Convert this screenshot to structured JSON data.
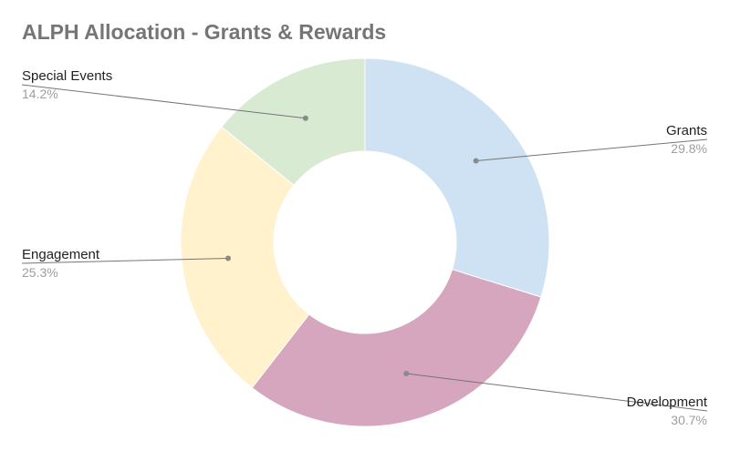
{
  "chart_data": {
    "type": "pie",
    "title": "ALPH Allocation - Grants & Rewards",
    "donut": true,
    "legend": "labels-with-leader-lines",
    "slices": [
      {
        "label": "Grants",
        "value": 29.8,
        "percent_label": "29.8%",
        "color": "#cfe2f3"
      },
      {
        "label": "Development",
        "value": 30.7,
        "percent_label": "30.7%",
        "color": "#d5a6bd"
      },
      {
        "label": "Engagement",
        "value": 25.3,
        "percent_label": "25.3%",
        "color": "#fff2cc"
      },
      {
        "label": "Special Events",
        "value": 14.2,
        "percent_label": "14.2%",
        "color": "#d9ead3"
      }
    ]
  }
}
